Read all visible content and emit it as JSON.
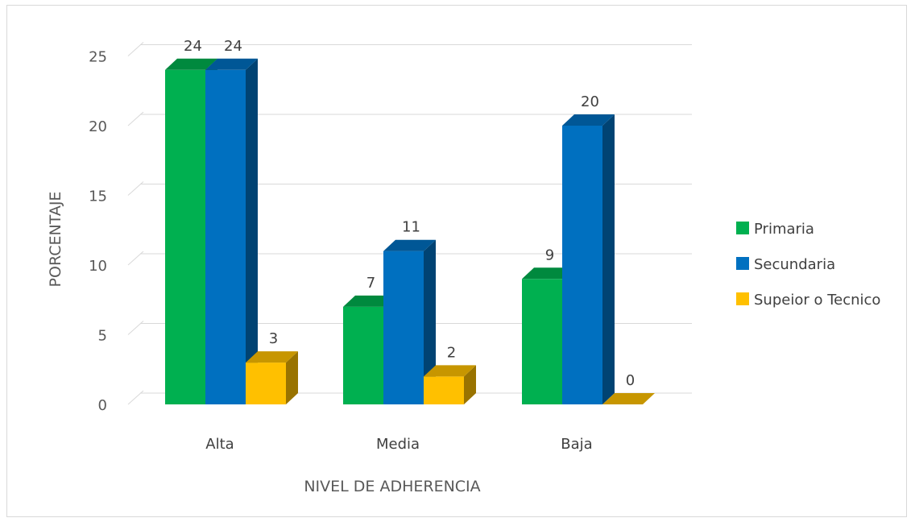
{
  "chart_data": {
    "type": "bar",
    "subtype": "3d-clustered-column",
    "categories": [
      "Alta",
      "Media",
      "Baja"
    ],
    "series": [
      {
        "name": "Primaria",
        "values": [
          24,
          7,
          9
        ],
        "color": "#00b050"
      },
      {
        "name": "Secundaria",
        "values": [
          24,
          11,
          20
        ],
        "color": "#0070c0"
      },
      {
        "name": "Supeior o Tecnico",
        "values": [
          3,
          2,
          0
        ],
        "color": "#ffc000"
      }
    ],
    "data_labels": [
      [
        "24",
        "7",
        "9"
      ],
      [
        "24",
        "11",
        "20"
      ],
      [
        "3",
        "2",
        "0"
      ]
    ],
    "title": "",
    "xlabel": "NIVEL DE ADHERENCIA",
    "ylabel": "PORCENTAJE",
    "ylim": [
      0,
      25
    ],
    "yticks": [
      0,
      5,
      10,
      15,
      20,
      25
    ],
    "ytick_labels": [
      "0",
      "5",
      "10",
      "15",
      "20",
      "25"
    ],
    "grid": true,
    "legend_position": "right"
  }
}
